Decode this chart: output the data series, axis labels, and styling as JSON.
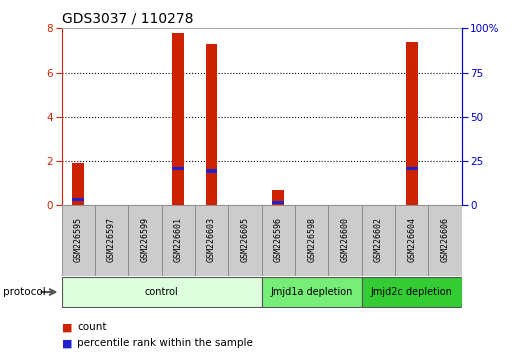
{
  "title": "GDS3037 / 110278",
  "samples": [
    "GSM226595",
    "GSM226597",
    "GSM226599",
    "GSM226601",
    "GSM226603",
    "GSM226605",
    "GSM226596",
    "GSM226598",
    "GSM226600",
    "GSM226602",
    "GSM226604",
    "GSM226606"
  ],
  "count_values": [
    1.9,
    0,
    0,
    7.8,
    7.3,
    0,
    0.7,
    0,
    0,
    0,
    7.4,
    0
  ],
  "percentile_values": [
    0.25,
    0,
    0,
    1.65,
    1.55,
    0,
    0.13,
    0,
    0,
    0,
    1.65,
    0
  ],
  "left_ylim": [
    0,
    8
  ],
  "left_yticks": [
    0,
    2,
    4,
    6,
    8
  ],
  "right_ytick_labels": [
    "0",
    "25",
    "50",
    "75",
    "100%"
  ],
  "bar_color": "#cc2200",
  "blue_color": "#2222cc",
  "bar_width": 0.35,
  "protocol_groups": [
    {
      "label": "control",
      "start": 0,
      "end": 5,
      "color": "#ddffdd"
    },
    {
      "label": "Jmjd1a depletion",
      "start": 6,
      "end": 8,
      "color": "#77ee77"
    },
    {
      "label": "Jmjd2c depletion",
      "start": 9,
      "end": 11,
      "color": "#33cc33"
    }
  ],
  "legend_count_label": "count",
  "legend_pct_label": "percentile rank within the sample",
  "protocol_label": "protocol",
  "title_fontsize": 10,
  "tick_fontsize": 7.5,
  "bg_color": "#ffffff",
  "grid_color": "#000000",
  "axis_color": "#cc2200",
  "right_axis_color": "#0000cc",
  "sample_box_color": "#cccccc",
  "sample_box_edge": "#888888"
}
